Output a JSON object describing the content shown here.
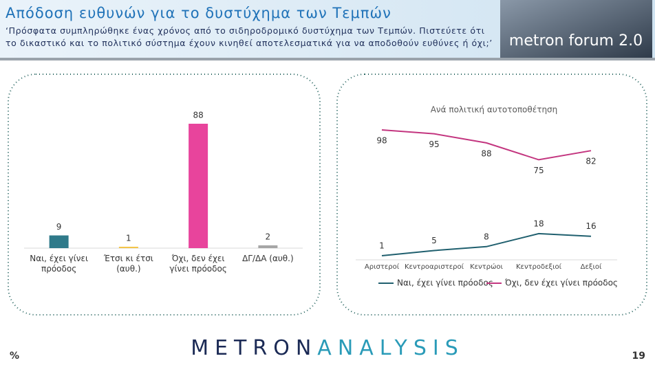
{
  "header": {
    "title": "Απόδοση ευθυνών για το δυστύχημα των Τεμπών",
    "subtitle": "‘Πρόσφατα συμπληρώθηκε ένας χρόνος από το σιδηροδρομικό δυστύχημα των Τεμπών. Πιστεύετε ότι το δικαστικό και το πολιτικό σύστημα έχουν κινηθεί αποτελεσματικά για να αποδοθούν ευθύνες ή όχι;’",
    "logo": "metron forum 2.0"
  },
  "chart_data": [
    {
      "type": "bar",
      "categories": [
        "Ναι, έχει γίνει πρόοδος",
        "Έτσι κι έτσι (αυθ.)",
        "Όχι, δεν έχει γίνει πρόοδος",
        "ΔΓ/ΔΑ (αυθ.)"
      ],
      "values": [
        9,
        1,
        88,
        2
      ],
      "colors": [
        "#2f7a8a",
        "#f3c44a",
        "#e8449c",
        "#a6a6a6"
      ]
    },
    {
      "type": "line",
      "title": "Ανά πολιτική αυτοτοποθέτηση",
      "categories": [
        "Αριστεροί",
        "Κεντροαριστεροί",
        "Κεντρώοι",
        "Κεντροδεξιοί",
        "Δεξιοί"
      ],
      "series": [
        {
          "name": "Ναι, έχει γίνει πρόοδος",
          "color": "#1f5f6e",
          "values": [
            1,
            5,
            8,
            18,
            16
          ]
        },
        {
          "name": "Όχι, δεν έχει γίνει πρόοδος",
          "color": "#c3357f",
          "values": [
            98,
            95,
            88,
            75,
            82
          ]
        }
      ],
      "legend": "bottom"
    }
  ],
  "footer": {
    "unit": "%",
    "brand_1": "METRON",
    "brand_2": "ANALYSIS",
    "page": "19"
  }
}
